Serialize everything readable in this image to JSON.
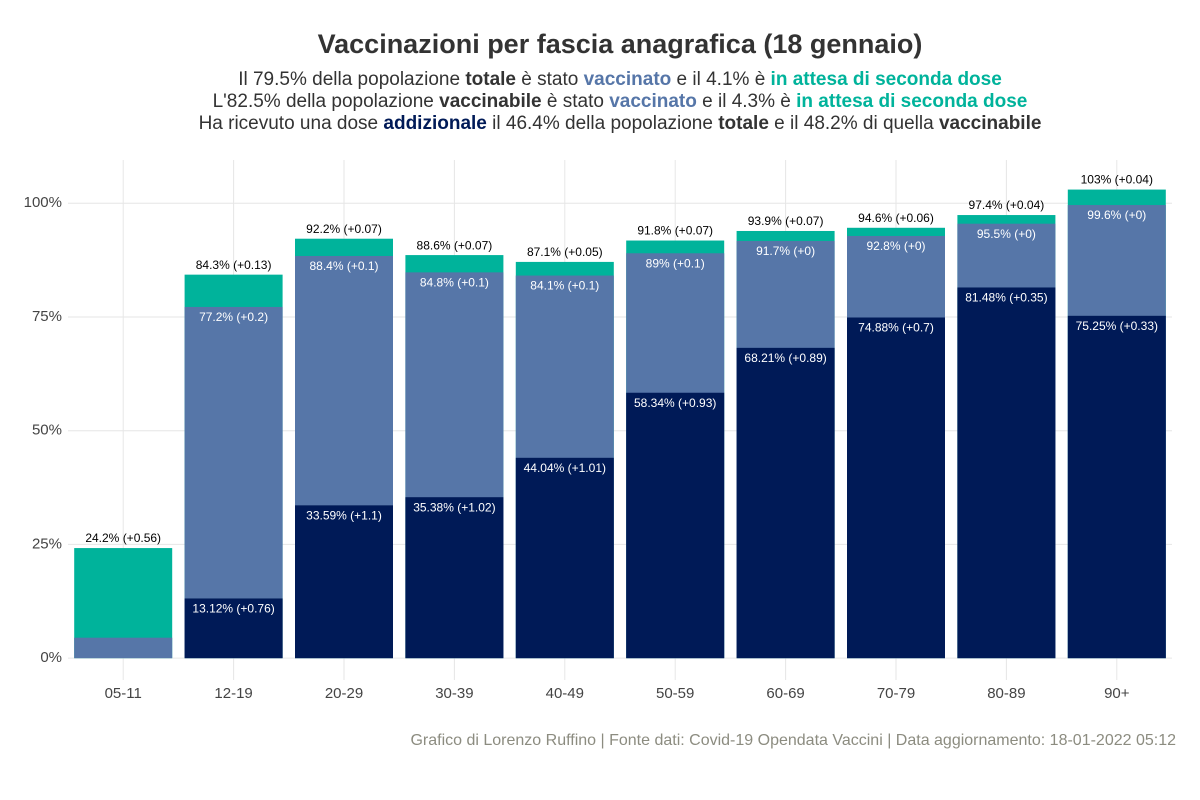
{
  "chart_data": {
    "type": "bar",
    "title": "Vaccinazioni per fascia anagrafica (18 gennaio)",
    "subtitle": [
      [
        {
          "text": "Il 79.5% della popolazione "
        },
        {
          "text": "totale",
          "bold": true
        },
        {
          "text": " è stato "
        },
        {
          "text": "vaccinato",
          "bold": true,
          "color": "#5676a8"
        },
        {
          "text": " e il 4.1% è "
        },
        {
          "text": "in attesa di seconda dose",
          "bold": true,
          "color": "#00b39b"
        }
      ],
      [
        {
          "text": "L'82.5% della popolazione "
        },
        {
          "text": "vaccinabile",
          "bold": true
        },
        {
          "text": " è stato "
        },
        {
          "text": "vaccinato",
          "bold": true,
          "color": "#5676a8"
        },
        {
          "text": " e il 4.3% è "
        },
        {
          "text": "in attesa di seconda dose",
          "bold": true,
          "color": "#00b39b"
        }
      ],
      [
        {
          "text": "Ha ricevuto una dose "
        },
        {
          "text": "addizionale",
          "bold": true,
          "color": "#001a57"
        },
        {
          "text": " il 46.4% della popolazione "
        },
        {
          "text": "totale",
          "bold": true
        },
        {
          "text": " e il 48.2% di quella "
        },
        {
          "text": "vaccinabile",
          "bold": true
        }
      ]
    ],
    "caption": "Grafico di Lorenzo Ruffino | Fonte dati: Covid-19 Opendata Vaccini | Data aggiornamento: 18-01-2022 05:12",
    "categories": [
      "05-11",
      "12-19",
      "20-29",
      "30-39",
      "40-49",
      "50-59",
      "60-69",
      "70-79",
      "80-89",
      "90+"
    ],
    "series": [
      {
        "color": "#00b39b",
        "values": [
          24.2,
          84.3,
          92.2,
          88.6,
          87.1,
          91.8,
          93.9,
          94.6,
          97.4,
          103
        ],
        "value_labels": [
          "24.2% (+0.56)",
          "84.3% (+0.13)",
          "92.2% (+0.07)",
          "88.6% (+0.07)",
          "87.1% (+0.05)",
          "91.8% (+0.07)",
          "93.9% (+0.07)",
          "94.6% (+0.06)",
          "97.4% (+0.04)",
          "103% (+0.04)"
        ]
      },
      {
        "color": "#5676a8",
        "values": [
          4.5,
          77.2,
          88.4,
          84.8,
          84.1,
          89,
          91.7,
          92.8,
          95.5,
          99.6
        ],
        "value_labels": [
          null,
          "77.2% (+0.2)",
          "88.4% (+0.1)",
          "84.8% (+0.1)",
          "84.1% (+0.1)",
          "89% (+0.1)",
          "91.7% (+0)",
          "92.8% (+0)",
          "95.5% (+0)",
          "99.6% (+0)"
        ]
      },
      {
        "color": "#001a57",
        "values": [
          null,
          13.12,
          33.59,
          35.38,
          44.04,
          58.34,
          68.21,
          74.88,
          81.48,
          75.25
        ],
        "value_labels": [
          null,
          "13.12% (+0.76)",
          "33.59% (+1.1)",
          "35.38% (+1.02)",
          "44.04% (+1.01)",
          "58.34% (+0.93)",
          "68.21% (+0.89)",
          "74.88% (+0.7)",
          "81.48% (+0.35)",
          "75.25% (+0.33)"
        ]
      }
    ],
    "ylim": [
      -4.8,
      109.5
    ],
    "yticks": [
      {
        "value": 0,
        "label": "0%"
      },
      {
        "value": 25,
        "label": "25%"
      },
      {
        "value": 50,
        "label": "50%"
      },
      {
        "value": 75,
        "label": "75%"
      },
      {
        "value": 100,
        "label": "100%"
      }
    ],
    "grid": true
  }
}
